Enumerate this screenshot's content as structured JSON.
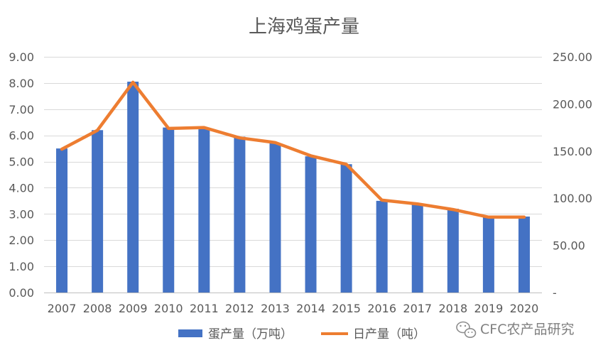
{
  "chart_data": {
    "type": "bar+line",
    "title": "上海鸡蛋产量",
    "categories": [
      "2007",
      "2008",
      "2009",
      "2010",
      "2011",
      "2012",
      "2013",
      "2014",
      "2015",
      "2016",
      "2017",
      "2018",
      "2019",
      "2020"
    ],
    "series": [
      {
        "name": "蛋产量（万吨）",
        "type": "bar",
        "axis": "left",
        "color": "#4472C4",
        "values": [
          5.5,
          6.2,
          8.05,
          6.3,
          6.3,
          5.95,
          5.7,
          5.2,
          4.9,
          3.5,
          3.4,
          3.2,
          2.9,
          2.9
        ]
      },
      {
        "name": "日产量（吨）",
        "type": "line",
        "axis": "right",
        "color": "#ED7D31",
        "values": [
          152,
          172,
          223,
          174,
          175,
          164,
          159,
          145,
          136,
          98,
          94,
          88,
          80,
          80
        ]
      }
    ],
    "y_left": {
      "min": 0,
      "max": 9,
      "step": 1,
      "ticks": [
        "0.00",
        "1.00",
        "2.00",
        "3.00",
        "4.00",
        "5.00",
        "6.00",
        "7.00",
        "8.00",
        "9.00"
      ]
    },
    "y_right": {
      "min": 0,
      "max": 250,
      "step": 50,
      "ticks": [
        "-",
        "50.00",
        "100.00",
        "150.00",
        "200.00",
        "250.00"
      ]
    },
    "grid": true,
    "legend_position": "bottom"
  },
  "watermark": {
    "text": "CFC农产品研究",
    "icon": "wechat-icon"
  }
}
